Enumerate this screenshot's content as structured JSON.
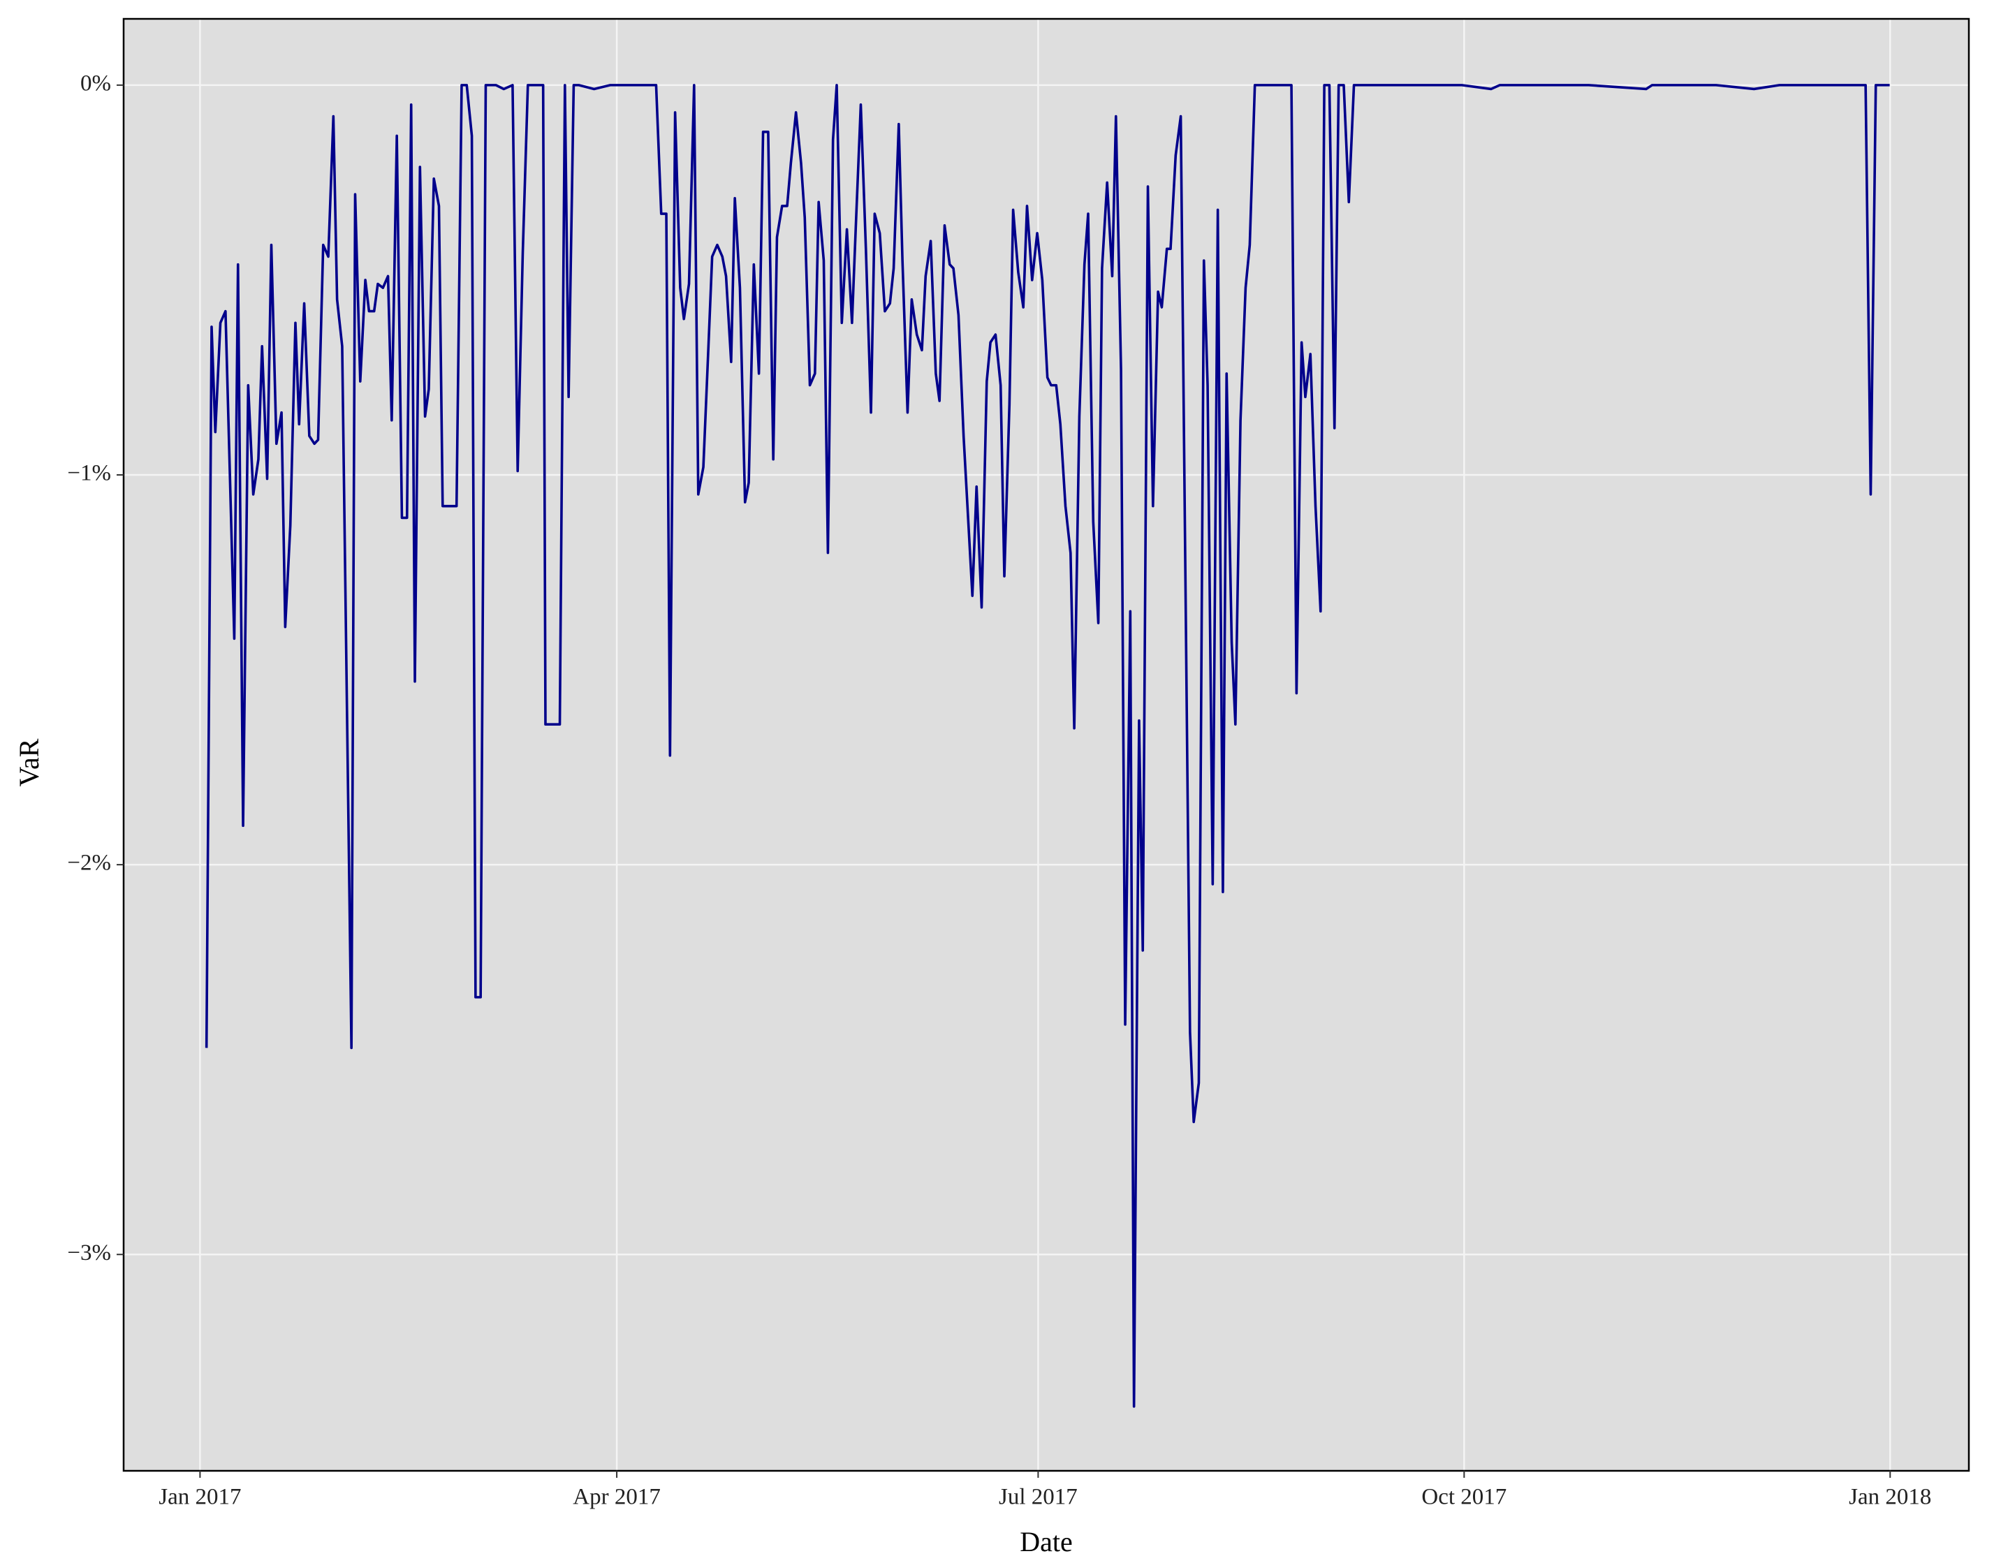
{
  "chart_data": {
    "type": "line",
    "xlabel": "Date",
    "ylabel": "VaR",
    "color": "#00008b",
    "grid": true,
    "xlim": [
      -16.5,
      382.0
    ],
    "xticks": [
      {
        "value": 0,
        "label": "Jan 2017"
      },
      {
        "value": 90,
        "label": "Apr 2017"
      },
      {
        "value": 181,
        "label": "Jul 2017"
      },
      {
        "value": 273,
        "label": "Oct 2017"
      },
      {
        "value": 365,
        "label": "Jan 2018"
      }
    ],
    "ylim": [
      -3.555,
      0.17
    ],
    "yticks": [
      {
        "value": -3,
        "label": "−3%"
      },
      {
        "value": -2,
        "label": "−2%"
      },
      {
        "value": -1,
        "label": "−1%"
      },
      {
        "value": 0,
        "label": "0%"
      }
    ],
    "x": [
      1.4,
      2.5,
      3.3,
      4.4,
      5.5,
      7.4,
      8.2,
      9.3,
      10.4,
      11.5,
      12.6,
      13.4,
      14.5,
      15.4,
      16.5,
      17.6,
      18.4,
      19.5,
      20.6,
      21.4,
      22.5,
      23.6,
      24.7,
      25.5,
      26.6,
      27.7,
      28.8,
      29.6,
      30.7,
      32.7,
      33.5,
      34.6,
      35.7,
      36.5,
      37.6,
      38.4,
      39.5,
      40.6,
      41.4,
      42.5,
      43.6,
      44.7,
      45.6,
      46.4,
      47.5,
      48.6,
      49.4,
      50.5,
      51.6,
      52.4,
      55.4,
      56.5,
      57.6,
      58.7,
      59.5,
      60.6,
      61.7,
      63.9,
      65.6,
      67.5,
      68.6,
      69.7,
      70.8,
      74.1,
      74.6,
      77.7,
      78.8,
      79.6,
      80.7,
      81.8,
      85.1,
      88.6,
      98.5,
      99.6,
      100.7,
      101.5,
      102.6,
      103.7,
      104.5,
      105.6,
      106.7,
      107.6,
      108.7,
      109.8,
      110.6,
      111.7,
      112.8,
      113.6,
      114.7,
      115.5,
      116.6,
      117.7,
      118.5,
      119.6,
      120.7,
      121.6,
      122.7,
      123.8,
      124.6,
      125.7,
      126.8,
      127.6,
      128.7,
      129.8,
      130.6,
      131.7,
      132.8,
      133.6,
      134.7,
      135.6,
      136.7,
      137.5,
      138.6,
      139.7,
      140.8,
      141.6,
      142.7,
      143.8,
      144.9,
      145.7,
      146.8,
      147.9,
      149.0,
      149.8,
      150.9,
      151.7,
      152.8,
      153.7,
      154.8,
      155.9,
      156.7,
      157.8,
      158.9,
      159.7,
      160.8,
      161.9,
      162.7,
      163.8,
      164.9,
      166.8,
      167.7,
      168.8,
      169.9,
      170.7,
      171.8,
      172.9,
      173.7,
      174.8,
      175.6,
      176.7,
      177.8,
      178.6,
      179.7,
      180.8,
      181.9,
      183.0,
      183.8,
      184.9,
      185.8,
      186.9,
      188.0,
      188.8,
      189.9,
      191.0,
      191.8,
      192.9,
      194.0,
      194.8,
      195.9,
      197.0,
      197.8,
      198.9,
      199.8,
      200.9,
      201.7,
      202.8,
      203.6,
      204.7,
      205.8,
      206.9,
      207.7,
      208.8,
      209.6,
      210.7,
      211.8,
      213.8,
      214.6,
      215.7,
      216.8,
      217.6,
      218.7,
      219.8,
      220.9,
      221.7,
      222.8,
      223.6,
      224.7,
      225.8,
      226.7,
      227.8,
      229.9,
      231.9,
      233.8,
      235.7,
      236.8,
      237.9,
      238.7,
      239.8,
      240.9,
      242.0,
      242.8,
      243.9,
      245.0,
      245.9,
      247.0,
      248.1,
      249.2,
      258.8,
      272.5,
      278.8,
      280.7,
      299.9,
      312.3,
      313.6,
      327.4,
      335.6,
      341.1,
      354.8,
      359.7,
      360.8,
      361.9,
      364.9
    ],
    "values": [
      -2.47,
      -0.62,
      -0.89,
      -0.61,
      -0.58,
      -1.42,
      -0.46,
      -1.9,
      -0.77,
      -1.05,
      -0.96,
      -0.67,
      -1.01,
      -0.41,
      -0.92,
      -0.84,
      -1.39,
      -1.13,
      -0.61,
      -0.87,
      -0.56,
      -0.9,
      -0.92,
      -0.91,
      -0.41,
      -0.44,
      -0.08,
      -0.55,
      -0.67,
      -2.47,
      -0.28,
      -0.76,
      -0.5,
      -0.58,
      -0.58,
      -0.51,
      -0.52,
      -0.49,
      -0.86,
      -0.13,
      -1.11,
      -1.11,
      -0.05,
      -1.53,
      -0.21,
      -0.85,
      -0.78,
      -0.24,
      -0.31,
      -1.08,
      -1.08,
      0,
      0,
      -0.13,
      -2.34,
      -2.34,
      0,
      0,
      -0.01,
      0,
      -0.99,
      -0.43,
      0,
      0,
      -1.64,
      -1.64,
      0,
      -0.8,
      0,
      0,
      -0.01,
      0,
      0,
      -0.33,
      -0.33,
      -1.72,
      -0.07,
      -0.52,
      -0.6,
      -0.51,
      0,
      -1.05,
      -0.98,
      -0.67,
      -0.44,
      -0.41,
      -0.44,
      -0.49,
      -0.71,
      -0.29,
      -0.52,
      -1.07,
      -1.02,
      -0.46,
      -0.74,
      -0.12,
      -0.12,
      -0.96,
      -0.39,
      -0.31,
      -0.31,
      -0.2,
      -0.07,
      -0.2,
      -0.34,
      -0.77,
      -0.74,
      -0.3,
      -0.45,
      -1.2,
      -0.14,
      0,
      -0.61,
      -0.37,
      -0.61,
      -0.37,
      -0.05,
      -0.42,
      -0.84,
      -0.33,
      -0.38,
      -0.58,
      -0.56,
      -0.47,
      -0.1,
      -0.45,
      -0.84,
      -0.55,
      -0.64,
      -0.68,
      -0.49,
      -0.4,
      -0.74,
      -0.81,
      -0.36,
      -0.46,
      -0.47,
      -0.59,
      -0.9,
      -1.31,
      -1.03,
      -1.34,
      -0.76,
      -0.66,
      -0.64,
      -0.77,
      -1.26,
      -0.82,
      -0.32,
      -0.48,
      -0.57,
      -0.31,
      -0.5,
      -0.38,
      -0.5,
      -0.75,
      -0.77,
      -0.77,
      -0.87,
      -1.08,
      -1.2,
      -1.65,
      -0.85,
      -0.46,
      -0.33,
      -1.12,
      -1.38,
      -0.47,
      -0.25,
      -0.49,
      -0.08,
      -0.73,
      -2.41,
      -1.35,
      -3.39,
      -1.63,
      -2.22,
      -0.26,
      -1.08,
      -0.53,
      -0.57,
      -0.42,
      -0.42,
      -0.18,
      -0.08,
      -2.43,
      -2.66,
      -2.56,
      -0.45,
      -0.77,
      -2.05,
      -0.32,
      -2.07,
      -0.74,
      -1.43,
      -1.64,
      -0.86,
      -0.52,
      -0.41,
      0,
      0,
      0,
      0,
      0,
      -1.56,
      -0.66,
      -0.8,
      -0.69,
      -1.08,
      -1.35,
      0,
      0,
      -0.88,
      0,
      0,
      -0.3,
      0,
      0,
      0,
      -0.01,
      0,
      0,
      -0.01,
      0,
      0,
      -0.01,
      0,
      0,
      0,
      -1.05,
      0,
      0
    ]
  }
}
